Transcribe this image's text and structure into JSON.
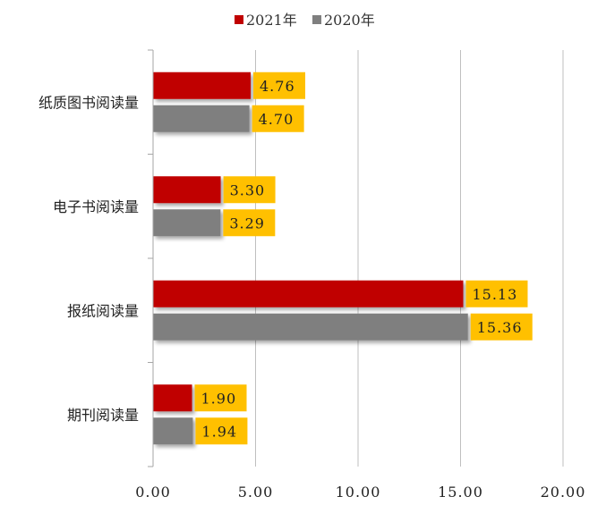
{
  "chart_data": {
    "type": "bar",
    "orientation": "horizontal",
    "categories": [
      "纸质图书阅读量",
      "电子书阅读量",
      "报纸阅读量",
      "期刊阅读量"
    ],
    "series": [
      {
        "name": "2021年",
        "values": [
          4.76,
          3.3,
          15.13,
          1.9
        ],
        "labels": [
          "4.76",
          "3.30",
          "15.13",
          "1.90"
        ],
        "color": "#C00000"
      },
      {
        "name": "2020年",
        "values": [
          4.7,
          3.29,
          15.36,
          1.94
        ],
        "labels": [
          "4.70",
          "3.29",
          "15.36",
          "1.94"
        ],
        "color": "#7F7F7F"
      }
    ],
    "xlim": [
      0,
      20
    ],
    "ticks": [
      0,
      5,
      10,
      15,
      20
    ],
    "tick_labels": [
      "0.00",
      "5.00",
      "10.00",
      "15.00",
      "20.00"
    ],
    "grid": true,
    "legend_position": "top-center",
    "data_label_bg": "#FFC000",
    "title": "",
    "xlabel": "",
    "ylabel": ""
  }
}
